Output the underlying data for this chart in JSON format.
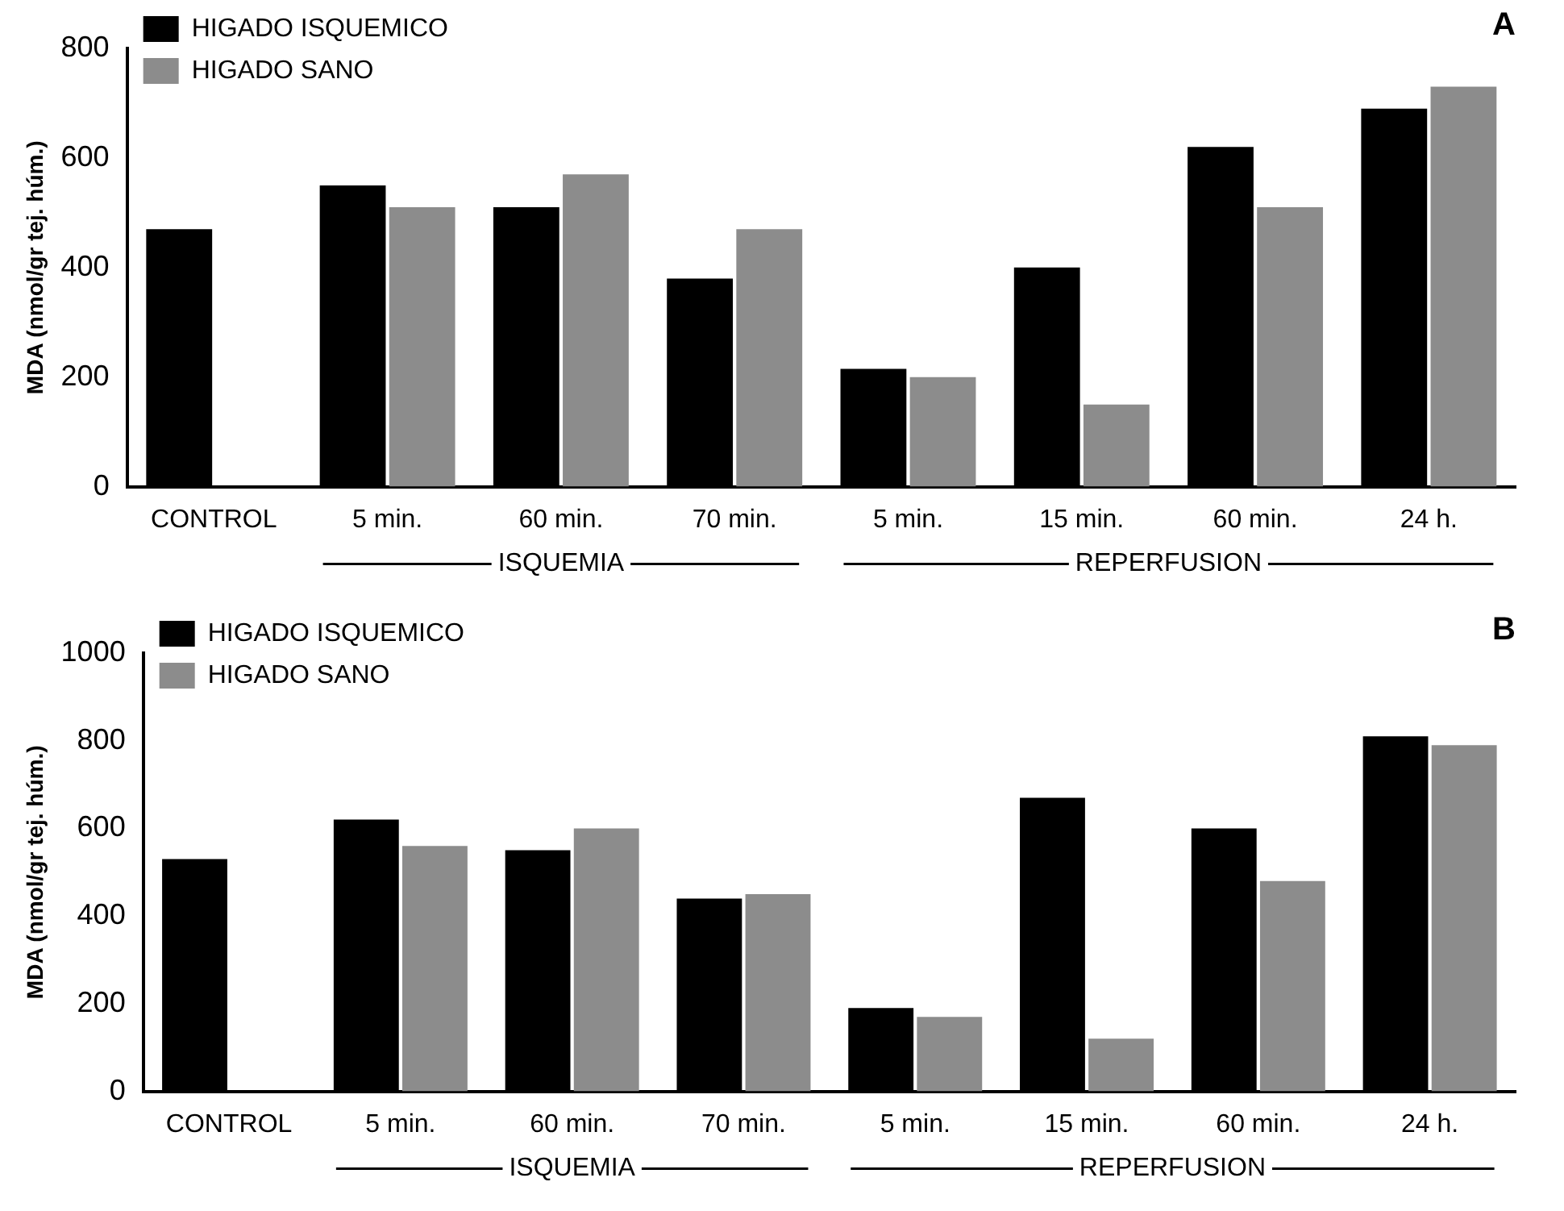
{
  "chart_data": [
    {
      "type": "bar",
      "title": "A",
      "ylabel": "MDA (nmol/gr tej. húm.)",
      "categories": [
        "CONTROL",
        "5 min.",
        "60 min.",
        "70 min.",
        "5 min.",
        "15 min.",
        "60 min.",
        "24 h."
      ],
      "series": [
        {
          "name": "HIGADO ISQUEMICO",
          "color": "#000000",
          "values": [
            470,
            550,
            510,
            380,
            215,
            400,
            620,
            690
          ]
        },
        {
          "name": "HIGADO SANO",
          "color": "#8c8c8c",
          "values": [
            null,
            510,
            570,
            470,
            200,
            150,
            510,
            730
          ]
        }
      ],
      "ylim": [
        0,
        800
      ],
      "yticks": [
        0,
        200,
        400,
        600,
        800
      ],
      "grid": false,
      "legend": "top left",
      "annotations": [
        "ISQUEMIA",
        "REPERFUSION"
      ]
    },
    {
      "type": "bar",
      "title": "B",
      "ylabel": "MDA (nmol/gr tej. húm.)",
      "categories": [
        "CONTROL",
        "5 min.",
        "60 min.",
        "70 min.",
        "5 min.",
        "15 min.",
        "60 min.",
        "24 h."
      ],
      "series": [
        {
          "name": "HIGADO ISQUEMICO",
          "color": "#000000",
          "values": [
            530,
            620,
            550,
            440,
            190,
            670,
            600,
            810
          ]
        },
        {
          "name": "HIGADO SANO",
          "color": "#8c8c8c",
          "values": [
            null,
            560,
            600,
            450,
            170,
            120,
            480,
            790
          ]
        }
      ],
      "ylim": [
        0,
        1000
      ],
      "yticks": [
        0,
        200,
        400,
        600,
        800,
        1000
      ],
      "grid": false,
      "legend": "top left",
      "annotations": [
        "ISQUEMIA",
        "REPERFUSION"
      ]
    }
  ]
}
